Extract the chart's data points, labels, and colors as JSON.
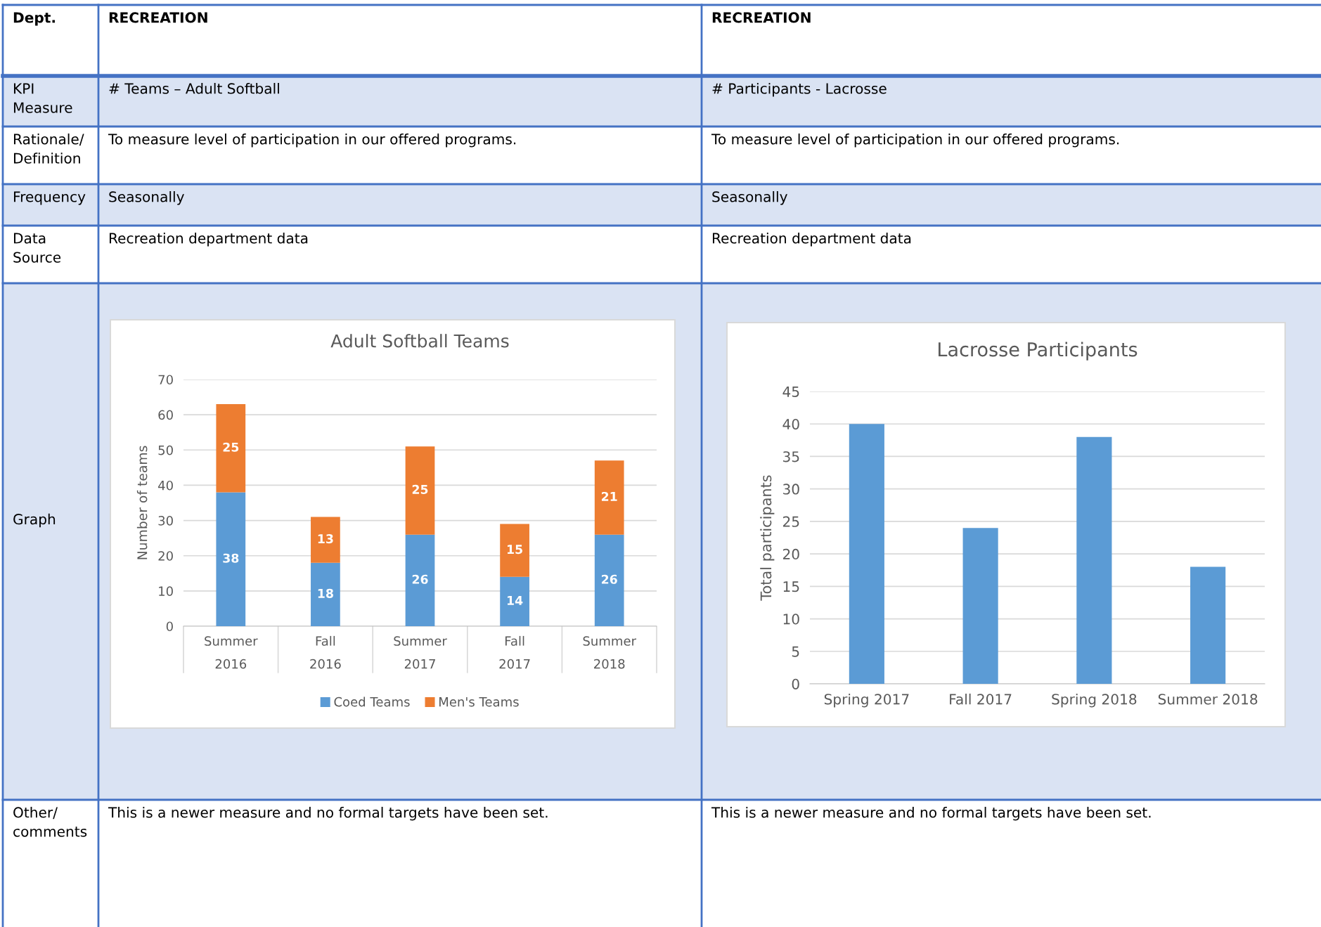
{
  "chart_data": [
    {
      "type": "other",
      "annotations": [
        "Dept.",
        "KPI\nMeasure",
        "Rationale/\nDefinition",
        "Frequency",
        "Data\nSource",
        "Graph",
        "Other/\ncomments"
      ]
    },
    {
      "type": "bar",
      "title": "Adult Softball Teams",
      "ylabel": "Number of teams",
      "categories": [
        "Summer\n2016",
        "Fall\n2016",
        "Summer\n2017",
        "Fall\n2017",
        "Summer\n2018"
      ],
      "series": [
        {
          "name": "Coed Teams",
          "color": "#5b9bd5",
          "values": [
            38,
            18,
            26,
            14,
            26
          ]
        },
        {
          "name": "Men's Teams",
          "color": "#ed7d31",
          "values": [
            25,
            13,
            25,
            15,
            21
          ]
        }
      ],
      "stacked": true,
      "data_labels": true,
      "ylim": [
        0,
        70
      ],
      "yticks": [
        0,
        10,
        20,
        30,
        40,
        50,
        60,
        70
      ],
      "grid": "y",
      "legend": "bottom",
      "annotations": [
        "RECREATION",
        "# Teams – Adult Softball",
        "To measure level of participation in our offered programs.",
        "Seasonally",
        "Recreation department data",
        "This is a newer measure and no formal targets have been set."
      ]
    },
    {
      "type": "bar",
      "title": "Lacrosse Participants",
      "ylabel": "Total participants",
      "categories": [
        "Spring 2017",
        "Fall 2017",
        "Spring 2018",
        "Summer 2018"
      ],
      "series": [
        {
          "color": "#5b9bd5",
          "values": [
            40,
            24,
            38,
            18
          ]
        }
      ],
      "ylim": [
        0,
        45
      ],
      "yticks": [
        0,
        5,
        10,
        15,
        20,
        25,
        30,
        35,
        40,
        45
      ],
      "grid": "y",
      "legend": false,
      "annotations": [
        "RECREATION",
        "# Participants - Lacrosse",
        "To measure level of participation in our offered programs.",
        "Seasonally",
        "Recreation department data",
        "This is a newer measure and no formal targets have been set."
      ]
    }
  ]
}
